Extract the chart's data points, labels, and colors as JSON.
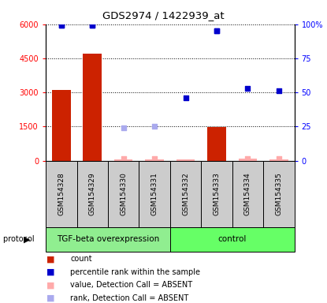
{
  "title": "GDS2974 / 1422939_at",
  "samples": [
    "GSM154328",
    "GSM154329",
    "GSM154330",
    "GSM154331",
    "GSM154332",
    "GSM154333",
    "GSM154334",
    "GSM154335"
  ],
  "bar_values": [
    3100,
    4700,
    50,
    60,
    55,
    1480,
    100,
    55
  ],
  "bar_absent": [
    false,
    false,
    true,
    true,
    true,
    false,
    true,
    true
  ],
  "dot_present_value": [
    5950,
    5950,
    null,
    null,
    null,
    5700,
    null,
    null
  ],
  "dot_present_rank": [
    99,
    99,
    null,
    null,
    46,
    95,
    53,
    51
  ],
  "dot_absent_value": [
    null,
    null,
    100,
    100,
    null,
    null,
    100,
    100
  ],
  "dot_absent_rank": [
    null,
    null,
    24,
    25,
    null,
    null,
    null,
    null
  ],
  "left_ylim": [
    0,
    6000
  ],
  "right_ylim": [
    0,
    100
  ],
  "left_yticks": [
    0,
    1500,
    3000,
    4500,
    6000
  ],
  "left_yticklabels": [
    "0",
    "1500",
    "3000",
    "4500",
    "6000"
  ],
  "right_yticks": [
    0,
    25,
    50,
    75,
    100
  ],
  "right_yticklabels": [
    "0",
    "25",
    "50",
    "75",
    "100%"
  ],
  "protocol_groups": [
    {
      "label": "TGF-beta overexpression",
      "start": 0,
      "end": 4,
      "color": "#90ee90"
    },
    {
      "label": "control",
      "start": 4,
      "end": 8,
      "color": "#66ff66"
    }
  ],
  "bar_color_present": "#cc2200",
  "bar_color_absent": "#ffaaaa",
  "dot_color_present": "#0000cc",
  "dot_color_absent": "#aaaaee",
  "sample_bg_color": "#cccccc",
  "legend_items": [
    {
      "color": "#cc2200",
      "label": "count"
    },
    {
      "color": "#0000cc",
      "label": "percentile rank within the sample"
    },
    {
      "color": "#ffaaaa",
      "label": "value, Detection Call = ABSENT"
    },
    {
      "color": "#aaaaee",
      "label": "rank, Detection Call = ABSENT"
    }
  ]
}
